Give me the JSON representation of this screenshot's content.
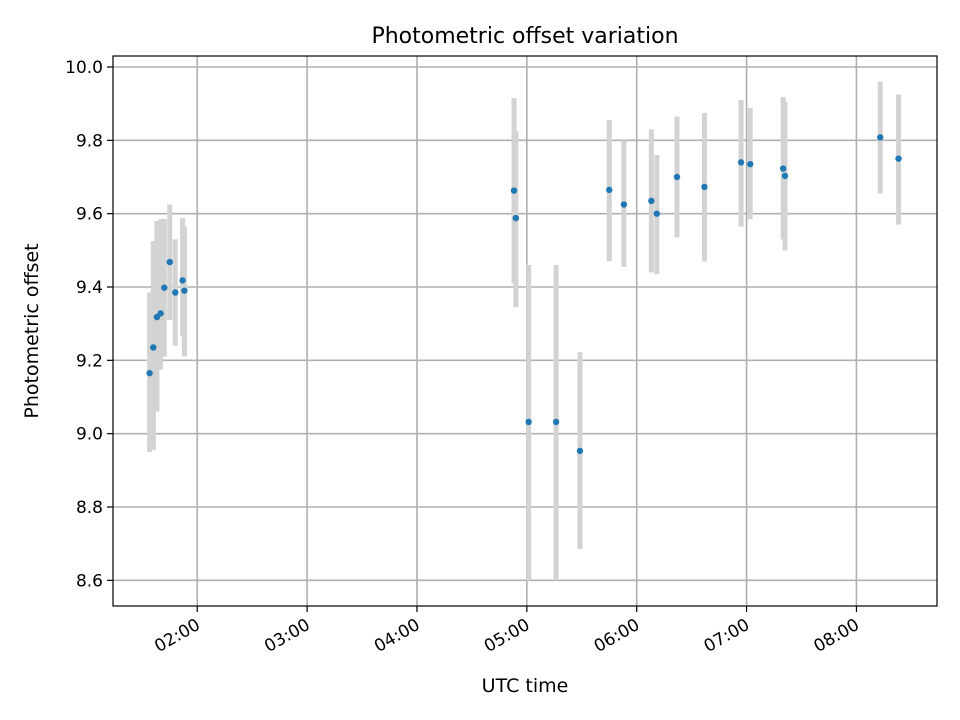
{
  "chart_data": {
    "type": "scatter",
    "title": "Photometric offset variation",
    "xlabel": "UTC time",
    "ylabel": "Photometric offset",
    "xlim": [
      "01:14",
      "08:44"
    ],
    "ylim": [
      8.53,
      10.03
    ],
    "x_ticks": [
      "02:00",
      "03:00",
      "04:00",
      "05:00",
      "06:00",
      "07:00",
      "08:00"
    ],
    "y_ticks": [
      8.6,
      8.8,
      9.0,
      9.2,
      9.4,
      9.6,
      9.8,
      10.0
    ],
    "y_tick_labels": [
      "8.6",
      "8.8",
      "9.0",
      "9.2",
      "9.4",
      "9.6",
      "9.8",
      "10.0"
    ],
    "grid": true,
    "colors": {
      "point": "#1f77b4",
      "errorbar": "#d3d3d3",
      "grid": "#b0b0b0"
    },
    "points": [
      {
        "x": "01:34",
        "y": 9.165,
        "lo": 8.95,
        "hi": 9.385
      },
      {
        "x": "01:36",
        "y": 9.235,
        "lo": 8.955,
        "hi": 9.525
      },
      {
        "x": "01:38",
        "y": 9.318,
        "lo": 9.06,
        "hi": 9.58
      },
      {
        "x": "01:40",
        "y": 9.328,
        "lo": 9.175,
        "hi": 9.585
      },
      {
        "x": "01:42",
        "y": 9.398,
        "lo": 9.21,
        "hi": 9.585
      },
      {
        "x": "01:45",
        "y": 9.468,
        "lo": 9.31,
        "hi": 9.625
      },
      {
        "x": "01:48",
        "y": 9.385,
        "lo": 9.24,
        "hi": 9.53
      },
      {
        "x": "01:52",
        "y": 9.418,
        "lo": 9.265,
        "hi": 9.588
      },
      {
        "x": "01:53",
        "y": 9.39,
        "lo": 9.21,
        "hi": 9.565
      },
      {
        "x": "04:53",
        "y": 9.663,
        "lo": 9.41,
        "hi": 9.915
      },
      {
        "x": "04:54",
        "y": 9.588,
        "lo": 9.345,
        "hi": 9.825
      },
      {
        "x": "05:01",
        "y": 9.032,
        "lo": 8.6,
        "hi": 9.46
      },
      {
        "x": "05:16",
        "y": 9.032,
        "lo": 8.6,
        "hi": 9.46
      },
      {
        "x": "05:29",
        "y": 8.953,
        "lo": 8.685,
        "hi": 9.222
      },
      {
        "x": "05:45",
        "y": 9.665,
        "lo": 9.47,
        "hi": 9.855
      },
      {
        "x": "05:53",
        "y": 9.625,
        "lo": 9.455,
        "hi": 9.8
      },
      {
        "x": "06:08",
        "y": 9.635,
        "lo": 9.44,
        "hi": 9.83
      },
      {
        "x": "06:11",
        "y": 9.6,
        "lo": 9.435,
        "hi": 9.76
      },
      {
        "x": "06:22",
        "y": 9.7,
        "lo": 9.535,
        "hi": 9.865
      },
      {
        "x": "06:37",
        "y": 9.673,
        "lo": 9.47,
        "hi": 9.875
      },
      {
        "x": "06:57",
        "y": 9.74,
        "lo": 9.565,
        "hi": 9.91
      },
      {
        "x": "07:02",
        "y": 9.735,
        "lo": 9.585,
        "hi": 9.888
      },
      {
        "x": "07:20",
        "y": 9.723,
        "lo": 9.53,
        "hi": 9.918
      },
      {
        "x": "07:21",
        "y": 9.703,
        "lo": 9.5,
        "hi": 9.905
      },
      {
        "x": "08:13",
        "y": 9.808,
        "lo": 9.655,
        "hi": 9.96
      },
      {
        "x": "08:23",
        "y": 9.75,
        "lo": 9.57,
        "hi": 9.925
      }
    ]
  }
}
